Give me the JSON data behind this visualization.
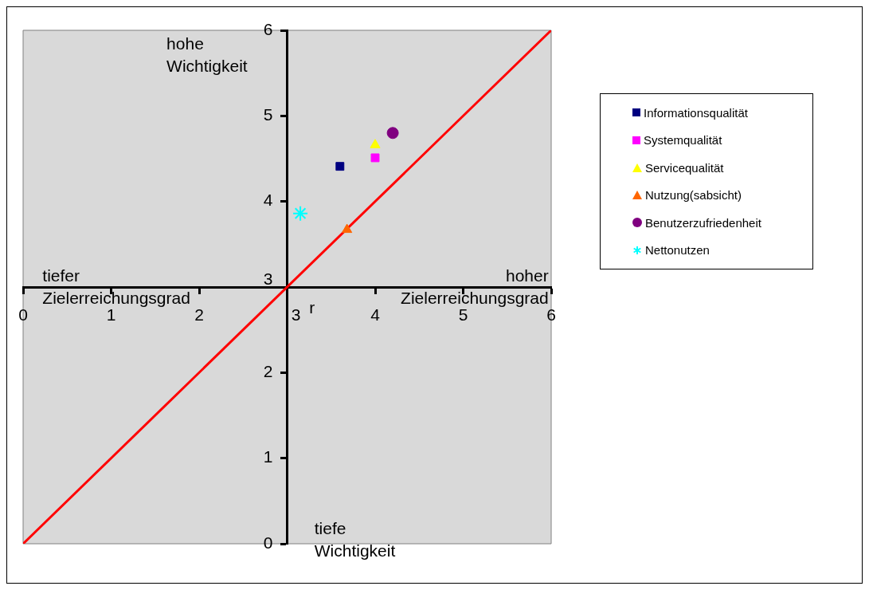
{
  "chart_data": {
    "type": "scatter",
    "xlim": [
      0,
      6
    ],
    "ylim": [
      0,
      6
    ],
    "xticks": [
      0,
      1,
      2,
      3,
      4,
      5,
      6
    ],
    "yticks": [
      0,
      1,
      2,
      3,
      4,
      5,
      6
    ],
    "grid": false,
    "legend": "right",
    "annotations": [
      "hohe Wichtigkeit",
      "tiefer Zielerreichungsgrad",
      "hoher Zielerreichungsgrad",
      "tiefe Wichtigkeit",
      "r"
    ],
    "series": [
      {
        "name": "Informationsqualität",
        "color": "#000080",
        "marker": "square",
        "x": [
          3.6
        ],
        "values": [
          4.41
        ]
      },
      {
        "name": "Systemqualität",
        "color": "#ff00ff",
        "marker": "square",
        "x": [
          4.0
        ],
        "values": [
          4.51
        ]
      },
      {
        "name": "Servicequalität",
        "color": "#ffff00",
        "marker": "triangle",
        "x": [
          4.0
        ],
        "values": [
          4.66
        ]
      },
      {
        "name": "Nutzung(sabsicht)",
        "color": "#ff6600",
        "marker": "triangle",
        "x": [
          3.68
        ],
        "values": [
          3.67
        ]
      },
      {
        "name": "Benutzerzufriedenheit",
        "color": "#800080",
        "marker": "circle",
        "x": [
          4.2
        ],
        "values": [
          4.8
        ]
      },
      {
        "name": "Nettonutzen",
        "color": "#00ffff",
        "marker": "cross",
        "x": [
          3.15
        ],
        "values": [
          3.86
        ]
      },
      {
        "type": "line",
        "color": "#ff0000",
        "marker": "none",
        "x": [
          0,
          6
        ],
        "values": [
          0,
          6
        ]
      }
    ]
  }
}
